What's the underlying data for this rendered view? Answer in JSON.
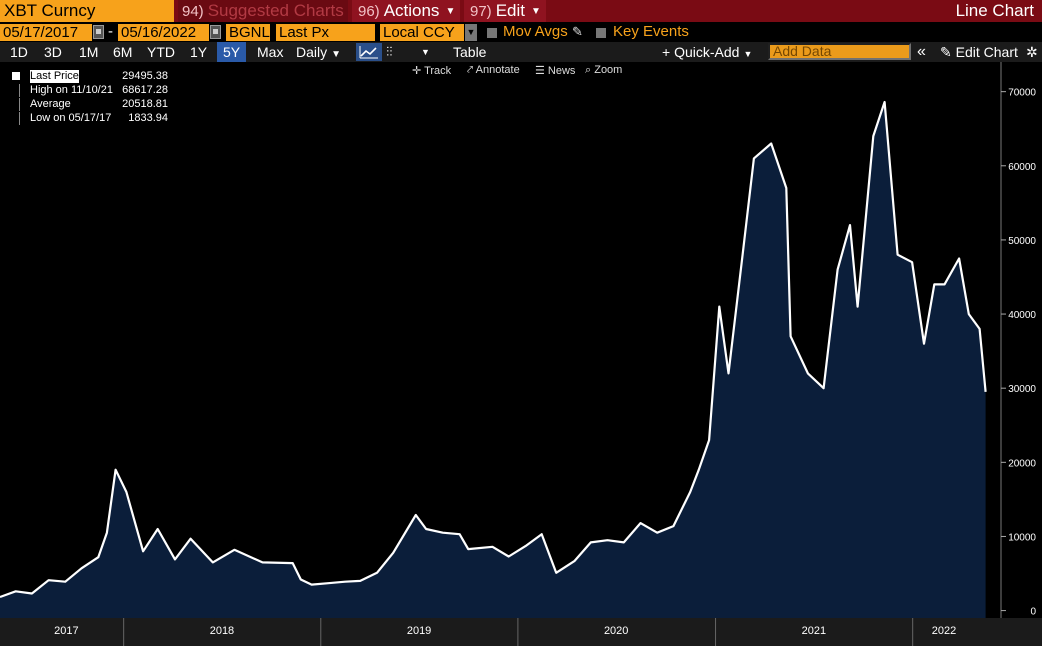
{
  "toolbar1": {
    "ticker": "XBT Curncy",
    "suggested_num": "94)",
    "suggested_label": "Suggested Charts",
    "actions_num": "96)",
    "actions_label": "Actions",
    "edit_num": "97)",
    "edit_label": "Edit",
    "chart_title": "Line Chart"
  },
  "toolbar2": {
    "start_date": "05/17/2017",
    "separator": "-",
    "end_date": "05/16/2022",
    "source": "BGNL",
    "field": "Last Px",
    "currency": "Local CCY",
    "mov_avgs": "Mov Avgs",
    "key_events": "Key Events"
  },
  "toolbar3": {
    "periods": [
      "1D",
      "3D",
      "1M",
      "6M",
      "YTD",
      "1Y",
      "5Y",
      "Max"
    ],
    "active_period": "5Y",
    "frequency": "Daily",
    "table_label": "Table",
    "quick_add": "+ Quick-Add",
    "add_data_placeholder": "Add Data",
    "collapse_icon": "«",
    "edit_chart": "Edit Chart"
  },
  "chart_tools": {
    "track": "Track",
    "annotate": "Annotate",
    "news": "News",
    "zoom": "Zoom"
  },
  "legend": {
    "last_price_label": "Last Price",
    "last_price_value": "29495.38",
    "high_label": "High on 11/10/21",
    "high_value": "68617.28",
    "average_label": "Average",
    "average_value": "20518.81",
    "low_label": "Low on 05/17/17",
    "low_value": "1833.94"
  },
  "colors": {
    "brand_orange": "#f7a21b",
    "header_red": "#8f1320",
    "series_line": "#ffffff",
    "series_fill": "#0b1e3a",
    "active_period": "#2a5aa8"
  },
  "chart_data": {
    "type": "area",
    "series": [
      {
        "name": "Last Price",
        "x": [
          "2017-05-17",
          "2017-06-15",
          "2017-07-15",
          "2017-08-15",
          "2017-09-15",
          "2017-10-15",
          "2017-11-15",
          "2017-12-01",
          "2017-12-17",
          "2018-01-06",
          "2018-02-06",
          "2018-03-05",
          "2018-04-06",
          "2018-05-05",
          "2018-06-15",
          "2018-07-25",
          "2018-09-15",
          "2018-11-10",
          "2018-11-25",
          "2018-12-15",
          "2019-01-15",
          "2019-02-15",
          "2019-03-15",
          "2019-04-15",
          "2019-05-15",
          "2019-06-26",
          "2019-07-15",
          "2019-08-15",
          "2019-09-15",
          "2019-10-01",
          "2019-11-15",
          "2019-12-15",
          "2020-01-15",
          "2020-02-14",
          "2020-03-12",
          "2020-04-15",
          "2020-05-15",
          "2020-06-15",
          "2020-07-15",
          "2020-08-15",
          "2020-09-15",
          "2020-10-15",
          "2020-11-15",
          "2020-12-01",
          "2020-12-20",
          "2021-01-08",
          "2021-01-25",
          "2021-02-20",
          "2021-03-13",
          "2021-04-14",
          "2021-05-12",
          "2021-05-20",
          "2021-06-21",
          "2021-07-20",
          "2021-08-15",
          "2021-09-07",
          "2021-09-21",
          "2021-10-20",
          "2021-11-10",
          "2021-12-04",
          "2021-12-31",
          "2022-01-22",
          "2022-02-10",
          "2022-03-01",
          "2022-03-28",
          "2022-04-15",
          "2022-05-05",
          "2022-05-16"
        ],
        "y": [
          1834,
          2600,
          2300,
          4100,
          3900,
          5700,
          7200,
          10500,
          19000,
          16000,
          8000,
          11000,
          6900,
          9700,
          6500,
          8200,
          6500,
          6400,
          4200,
          3500,
          3700,
          3900,
          4000,
          5100,
          7800,
          12900,
          11000,
          10500,
          10300,
          8300,
          8600,
          7300,
          8700,
          10300,
          5100,
          6700,
          9200,
          9500,
          9200,
          11800,
          10500,
          11400,
          16000,
          19000,
          23000,
          41000,
          32000,
          48000,
          61000,
          63000,
          57000,
          37000,
          32000,
          30000,
          46000,
          52000,
          41000,
          64000,
          68600,
          48000,
          47000,
          36000,
          44000,
          44000,
          47500,
          40000,
          38000,
          29495
        ]
      }
    ],
    "y_ticks": [
      "0",
      "10000",
      "20000",
      "30000",
      "40000",
      "50000",
      "60000",
      "70000"
    ],
    "ylim": [
      -1000,
      74000
    ],
    "x_ticks": [
      "2017",
      "2018",
      "2019",
      "2020",
      "2021",
      "2022"
    ],
    "x_tick_dates": [
      "2017-09-17",
      "2018-07-02",
      "2019-07-02",
      "2020-07-01",
      "2021-07-02",
      "2022-02-28"
    ],
    "x_separator_dates": [
      "2018-01-01",
      "2019-01-01",
      "2020-01-01",
      "2021-01-01",
      "2022-01-01"
    ],
    "xlim": [
      "2017-05-17",
      "2022-06-08"
    ],
    "grid": false,
    "y_axis_side": "right"
  }
}
